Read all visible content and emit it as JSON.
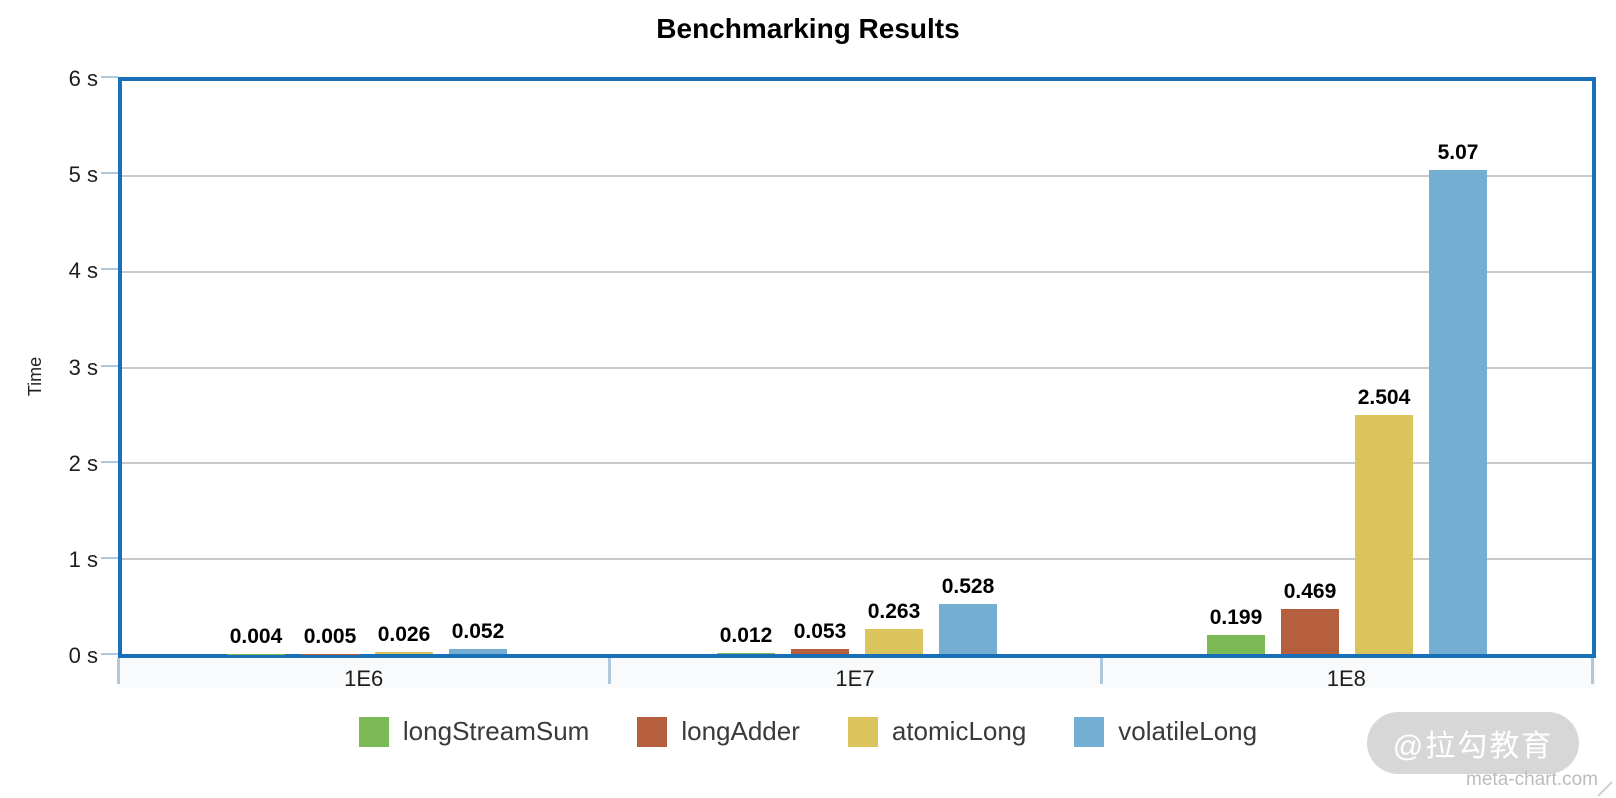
{
  "chart_data": {
    "type": "bar",
    "title": "Benchmarking Results",
    "ylabel": "Time",
    "xlabel": "",
    "categories": [
      "1E6",
      "1E7",
      "1E8"
    ],
    "series": [
      {
        "name": "longStreamSum",
        "color": "#7bba54",
        "values": [
          0.004,
          0.012,
          0.199
        ],
        "data_labels": [
          "0.004",
          "0.012",
          "0.199"
        ]
      },
      {
        "name": "longAdder",
        "color": "#b65f3e",
        "values": [
          0.005,
          0.053,
          0.469
        ],
        "data_labels": [
          "0.005",
          "0.053",
          "0.469"
        ]
      },
      {
        "name": "atomicLong",
        "color": "#dcc45c",
        "values": [
          0.026,
          0.263,
          2.504
        ],
        "data_labels": [
          "0.026",
          "0.263",
          "2.504"
        ]
      },
      {
        "name": "volatileLong",
        "color": "#74afd3",
        "values": [
          0.052,
          0.528,
          5.07
        ],
        "data_labels": [
          "0.052",
          "0.528",
          "5.07"
        ]
      }
    ],
    "ylim": [
      0,
      6
    ],
    "y_ticks": [
      {
        "value": 6,
        "label": "6 s"
      },
      {
        "value": 5,
        "label": "5 s"
      },
      {
        "value": 4,
        "label": "4 s"
      },
      {
        "value": 3,
        "label": "3 s"
      },
      {
        "value": 2,
        "label": "2 s"
      },
      {
        "value": 1,
        "label": "1 s"
      },
      {
        "value": 0,
        "label": "0 s"
      }
    ],
    "grid": true,
    "legend_position": "bottom"
  },
  "colors": {
    "background": "#ffffff",
    "plot_border": "#1a6fb9",
    "gridline": "#c6c9cc",
    "tick": "#b0c8dc",
    "axis_text": "#1d1d1d",
    "value_label": "#000000",
    "legend_text": "#3a3a3a",
    "watermark_pill_bg": "#d7d7d7",
    "watermark_pill_text": "#ffffff",
    "watermark_site_text": "#bcbcbc"
  },
  "watermark": {
    "badge": "@拉勾教育",
    "site": "meta-chart.com"
  }
}
